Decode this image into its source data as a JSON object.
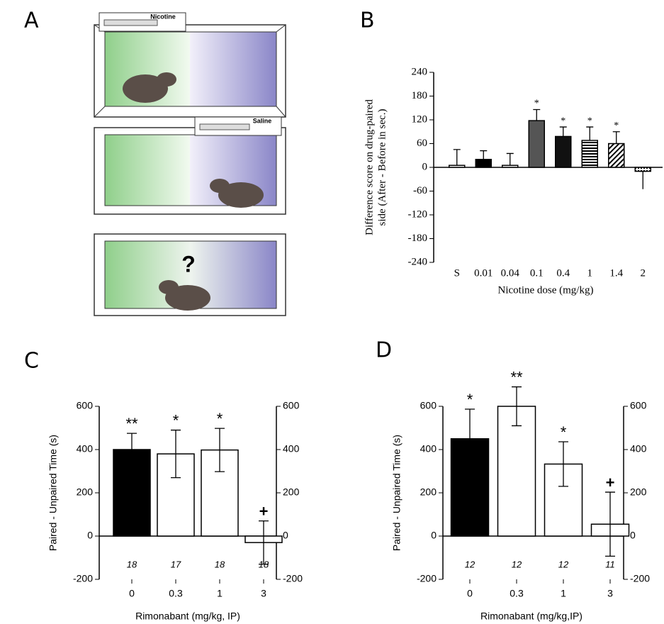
{
  "figure": {
    "panel_labels": [
      "A",
      "B",
      "C",
      "D"
    ],
    "diagram": {
      "syringe_labels": [
        "Nicotine",
        "Saline"
      ],
      "question": "?"
    }
  },
  "chart_data": [
    {
      "type": "bar",
      "font": "serif",
      "ylabel": [
        "Difference score on drug-paired",
        "side (After - Before in sec.)"
      ],
      "xlabel": "Nicotine dose (mg/kg)",
      "categories": [
        "S",
        "0.01",
        "0.04",
        "0.1",
        "0.4",
        "1",
        "1.4",
        "2"
      ],
      "values": [
        5,
        20,
        5,
        118,
        78,
        68,
        60,
        -10
      ],
      "errors": [
        40,
        22,
        30,
        28,
        24,
        34,
        30,
        45
      ],
      "error_style": "outward",
      "markers": [
        null,
        null,
        null,
        "*",
        "*",
        "*",
        "*",
        null
      ],
      "fills": [
        "#ffffff",
        "#000000",
        "#ffffff",
        "#555555",
        "#111111",
        "stripes-h",
        "stripes-d",
        "dots"
      ],
      "ylim": [
        -240,
        240
      ],
      "yticks": [
        -240,
        -180,
        -120,
        -60,
        0,
        60,
        120,
        180,
        240
      ],
      "grid": false
    },
    {
      "type": "bar",
      "font": "sans",
      "ylabel": [
        "Paired - Unpaired Time (s)"
      ],
      "xlabel": "Rimonabant (mg/kg, IP)",
      "categories": [
        "0",
        "0.3",
        "1",
        "3"
      ],
      "values": [
        400,
        380,
        398,
        -30
      ],
      "errors": [
        75,
        110,
        100,
        100
      ],
      "error_style": "both",
      "markers": [
        "**",
        "*",
        "*",
        "+"
      ],
      "n": [
        18,
        17,
        18,
        18
      ],
      "fills": [
        "#000000",
        "#ffffff",
        "#ffffff",
        "#ffffff"
      ],
      "ylim": [
        -200,
        600
      ],
      "yticks": [
        -200,
        0,
        200,
        400,
        600
      ],
      "y2lim": [
        -200,
        600
      ],
      "y2ticks": [
        -200,
        0,
        200,
        400,
        600
      ],
      "grid": false
    },
    {
      "type": "bar",
      "font": "sans",
      "ylabel": [
        "Paired - Unpaired Time (s)"
      ],
      "xlabel": "Rimonabant (mg/kg,IP)",
      "categories": [
        "0",
        "0.3",
        "1",
        "3"
      ],
      "values": [
        450,
        600,
        333,
        55
      ],
      "errors": [
        137,
        90,
        103,
        148
      ],
      "error_style": "both",
      "markers": [
        "*",
        "**",
        "*",
        "+"
      ],
      "n": [
        12,
        12,
        12,
        11
      ],
      "fills": [
        "#000000",
        "#ffffff",
        "#ffffff",
        "#ffffff"
      ],
      "ylim": [
        -200,
        600
      ],
      "yticks": [
        -200,
        0,
        200,
        400,
        600
      ],
      "y2lim": [
        -200,
        600
      ],
      "y2ticks": [
        -200,
        0,
        200,
        400,
        600
      ],
      "grid": false
    }
  ]
}
